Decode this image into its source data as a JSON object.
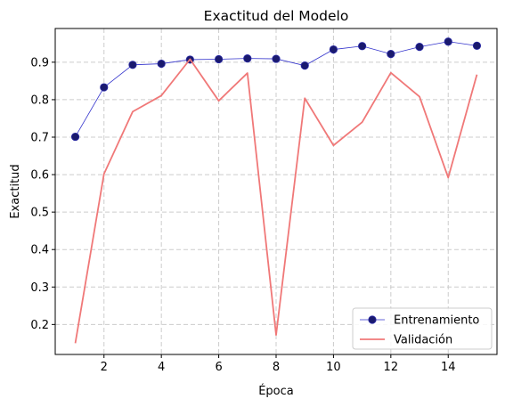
{
  "chart_data": {
    "type": "line",
    "title": "Exactitud del Modelo",
    "xlabel": "Época",
    "ylabel": "Exactitud",
    "xlim": [
      0.3,
      15.7
    ],
    "ylim": [
      0.12,
      0.99
    ],
    "xticks": [
      2,
      4,
      6,
      8,
      10,
      12,
      14
    ],
    "yticks": [
      0.2,
      0.3,
      0.4,
      0.5,
      0.6,
      0.7,
      0.8,
      0.9
    ],
    "grid": true,
    "legend_position": "lower-right",
    "x": [
      1,
      2,
      3,
      4,
      5,
      6,
      7,
      8,
      9,
      10,
      11,
      12,
      13,
      14,
      15
    ],
    "series": [
      {
        "name": "Entrenamiento",
        "color": "#1a1a6e",
        "line_color": "#3333cc",
        "marker": "circle",
        "values": [
          0.701,
          0.833,
          0.893,
          0.896,
          0.907,
          0.908,
          0.91,
          0.909,
          0.891,
          0.934,
          0.943,
          0.922,
          0.941,
          0.955,
          0.944
        ]
      },
      {
        "name": "Validación",
        "color": "#f07878",
        "marker": "none",
        "values": [
          0.15,
          0.602,
          0.768,
          0.811,
          0.908,
          0.797,
          0.871,
          0.172,
          0.804,
          0.678,
          0.74,
          0.872,
          0.808,
          0.592,
          0.867
        ]
      }
    ]
  }
}
